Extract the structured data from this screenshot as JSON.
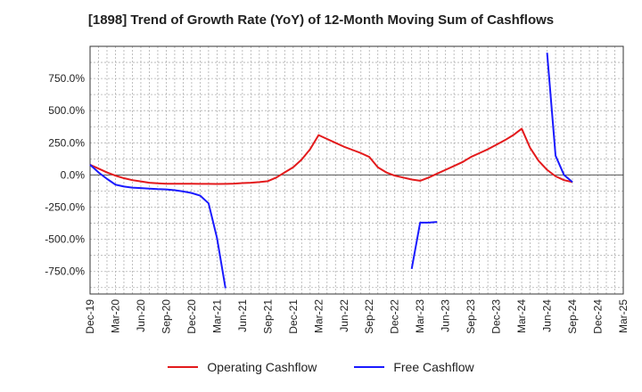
{
  "chart_data": {
    "type": "line",
    "title": "[1898]  Trend of Growth Rate (YoY) of 12-Month Moving Sum of Cashflows",
    "xlabel": "",
    "ylabel": "",
    "ylim": [
      -925,
      1000
    ],
    "grid": true,
    "legend_position": "bottom",
    "y_ticks": [
      750,
      500,
      250,
      0,
      -250,
      -500,
      -750
    ],
    "y_tick_labels": [
      "750.0%",
      "500.0%",
      "250.0%",
      "0.0%",
      "-250.0%",
      "-500.0%",
      "-750.0%"
    ],
    "x_tick_labels": [
      "Dec-19",
      "Mar-20",
      "Jun-20",
      "Sep-20",
      "Dec-20",
      "Mar-21",
      "Jun-21",
      "Sep-21",
      "Dec-21",
      "Mar-22",
      "Jun-22",
      "Sep-22",
      "Dec-22",
      "Mar-23",
      "Jun-23",
      "Sep-23",
      "Dec-23",
      "Mar-24",
      "Jun-24",
      "Sep-24",
      "Dec-24",
      "Mar-25"
    ],
    "x_start": "Dec-19",
    "x_end": "Mar-25",
    "series": [
      {
        "name": "Operating Cashflow",
        "color": "#e31a1c",
        "points": [
          [
            "Dec-19",
            80
          ],
          [
            "Jan-20",
            50
          ],
          [
            "Feb-20",
            20
          ],
          [
            "Mar-20",
            -5
          ],
          [
            "Apr-20",
            -25
          ],
          [
            "May-20",
            -40
          ],
          [
            "Jun-20",
            -50
          ],
          [
            "Jul-20",
            -60
          ],
          [
            "Aug-20",
            -65
          ],
          [
            "Sep-20",
            -68
          ],
          [
            "Oct-20",
            -68
          ],
          [
            "Nov-20",
            -68
          ],
          [
            "Dec-20",
            -68
          ],
          [
            "Jan-21",
            -69
          ],
          [
            "Feb-21",
            -69
          ],
          [
            "Mar-21",
            -70
          ],
          [
            "Apr-21",
            -69
          ],
          [
            "May-21",
            -67
          ],
          [
            "Jun-21",
            -63
          ],
          [
            "Jul-21",
            -60
          ],
          [
            "Aug-21",
            -55
          ],
          [
            "Sep-21",
            -48
          ],
          [
            "Oct-21",
            -20
          ],
          [
            "Nov-21",
            20
          ],
          [
            "Dec-21",
            60
          ],
          [
            "Jan-22",
            120
          ],
          [
            "Feb-22",
            200
          ],
          [
            "Mar-22",
            310
          ],
          [
            "Apr-22",
            280
          ],
          [
            "May-22",
            250
          ],
          [
            "Jun-22",
            220
          ],
          [
            "Jul-22",
            195
          ],
          [
            "Aug-22",
            170
          ],
          [
            "Sep-22",
            140
          ],
          [
            "Oct-22",
            60
          ],
          [
            "Nov-22",
            20
          ],
          [
            "Dec-22",
            -5
          ],
          [
            "Jan-23",
            -20
          ],
          [
            "Feb-23",
            -35
          ],
          [
            "Mar-23",
            -45
          ],
          [
            "Apr-23",
            -20
          ],
          [
            "May-23",
            10
          ],
          [
            "Jun-23",
            40
          ],
          [
            "Jul-23",
            70
          ],
          [
            "Aug-23",
            100
          ],
          [
            "Sep-23",
            140
          ],
          [
            "Oct-23",
            170
          ],
          [
            "Nov-23",
            200
          ],
          [
            "Dec-23",
            235
          ],
          [
            "Jan-24",
            270
          ],
          [
            "Feb-24",
            310
          ],
          [
            "Mar-24",
            360
          ],
          [
            "Apr-24",
            210
          ],
          [
            "May-24",
            110
          ],
          [
            "Jun-24",
            40
          ],
          [
            "Jul-24",
            -10
          ],
          [
            "Aug-24",
            -40
          ],
          [
            "Sep-24",
            -55
          ]
        ]
      },
      {
        "name": "Free Cashflow",
        "color": "#1a1aff",
        "segments": [
          [
            [
              "Dec-19",
              80
            ],
            [
              "Jan-20",
              20
            ],
            [
              "Feb-20",
              -30
            ],
            [
              "Mar-20",
              -75
            ],
            [
              "Apr-20",
              -90
            ],
            [
              "May-20",
              -98
            ],
            [
              "Jun-20",
              -102
            ],
            [
              "Jul-20",
              -106
            ],
            [
              "Aug-20",
              -110
            ],
            [
              "Sep-20",
              -112
            ],
            [
              "Oct-20",
              -118
            ],
            [
              "Nov-20",
              -128
            ],
            [
              "Dec-20",
              -140
            ],
            [
              "Jan-21",
              -160
            ],
            [
              "Feb-21",
              -220
            ],
            [
              "Mar-21",
              -490
            ],
            [
              "Apr-21",
              -880
            ]
          ],
          [
            [
              "Feb-23",
              -730
            ],
            [
              "Mar-23",
              -370
            ],
            [
              "Apr-23",
              -370
            ],
            [
              "May-23",
              -365
            ]
          ],
          [
            [
              "Jun-24",
              950
            ],
            [
              "Jul-24",
              150
            ],
            [
              "Aug-24",
              0
            ],
            [
              "Sep-24",
              -55
            ]
          ]
        ]
      }
    ]
  }
}
